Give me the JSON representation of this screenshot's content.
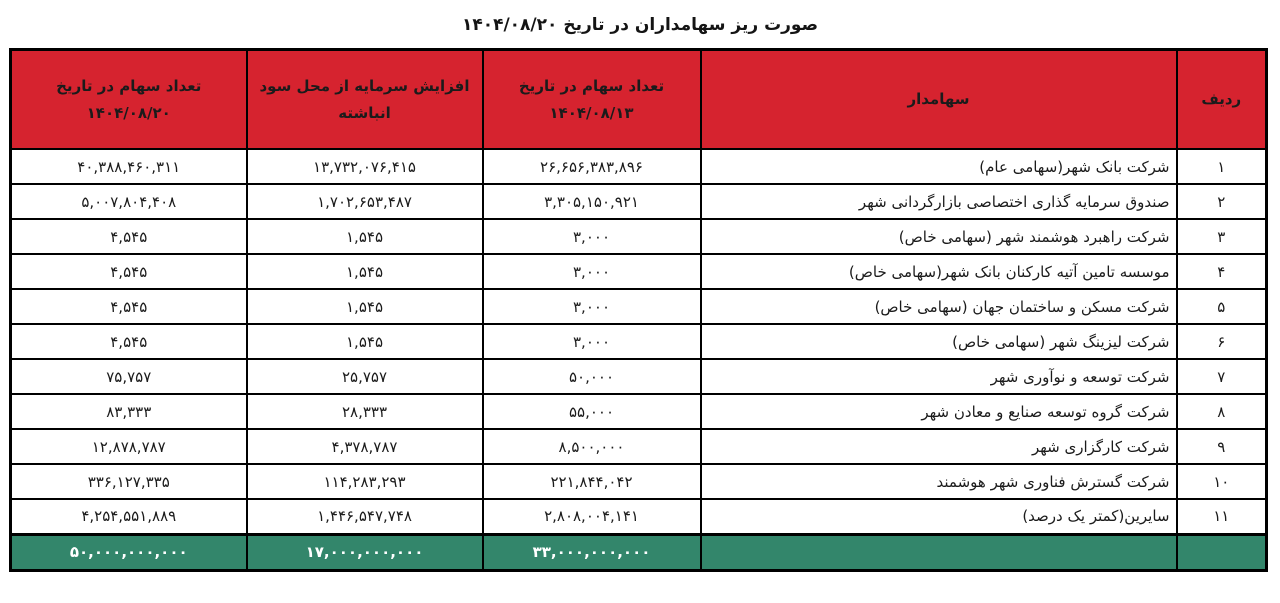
{
  "page": {
    "title": "صورت ریز سهامداران در تاریخ ۱۴۰۴/۰۸/۲۰"
  },
  "colors": {
    "header_bg": "#D6232F",
    "total_bg": "#33866B",
    "border": "#000000",
    "header_text": "#ffffff",
    "body_text": "#1b1b1b"
  },
  "table": {
    "headers": {
      "row_no": "ردیف",
      "shareholder": "سهامدار",
      "shares_before": [
        "تعداد سهام در تاریخ",
        "۱۴۰۴/۰۸/۱۳"
      ],
      "increase": [
        "افزایش سرمایه از محل سود",
        "انباشته"
      ],
      "shares_after": [
        "تعداد سهام در تاریخ",
        "۱۴۰۴/۰۸/۲۰"
      ]
    },
    "rows": [
      {
        "no": "۱",
        "name": "شرکت بانک شهر(سهامی عام)",
        "shares_before": "۲۶,۶۵۶,۳۸۳,۸۹۶",
        "increase": "۱۳,۷۳۲,۰۷۶,۴۱۵",
        "shares_after": "۴۰,۳۸۸,۴۶۰,۳۱۱"
      },
      {
        "no": "۲",
        "name": "صندوق سرمایه گذاری  اختصاصی بازارگردانی شهر",
        "shares_before": "۳,۳۰۵,۱۵۰,۹۲۱",
        "increase": "۱,۷۰۲,۶۵۳,۴۸۷",
        "shares_after": "۵,۰۰۷,۸۰۴,۴۰۸"
      },
      {
        "no": "۳",
        "name": "شرکت راهبرد هوشمند شهر (سهامی خاص)",
        "shares_before": "۳,۰۰۰",
        "increase": "۱,۵۴۵",
        "shares_after": "۴,۵۴۵"
      },
      {
        "no": "۴",
        "name": "موسسه تامین آتیه کارکنان بانک شهر(سهامی خاص)",
        "shares_before": "۳,۰۰۰",
        "increase": "۱,۵۴۵",
        "shares_after": "۴,۵۴۵"
      },
      {
        "no": "۵",
        "name": "شرکت مسکن و ساختمان جهان (سهامی خاص)",
        "shares_before": "۳,۰۰۰",
        "increase": "۱,۵۴۵",
        "shares_after": "۴,۵۴۵"
      },
      {
        "no": "۶",
        "name": "شرکت لیزینگ شهر (سهامی خاص)",
        "shares_before": "۳,۰۰۰",
        "increase": "۱,۵۴۵",
        "shares_after": "۴,۵۴۵"
      },
      {
        "no": "۷",
        "name": "شرکت توسعه و نوآوری شهر",
        "shares_before": "۵۰,۰۰۰",
        "increase": "۲۵,۷۵۷",
        "shares_after": "۷۵,۷۵۷"
      },
      {
        "no": "۸",
        "name": "شرکت گروه توسعه صنایع و معادن  شهر",
        "shares_before": "۵۵,۰۰۰",
        "increase": "۲۸,۳۳۳",
        "shares_after": "۸۳,۳۳۳"
      },
      {
        "no": "۹",
        "name": "شرکت کارگزاری شهر",
        "shares_before": "۸,۵۰۰,۰۰۰",
        "increase": "۴,۳۷۸,۷۸۷",
        "shares_after": "۱۲,۸۷۸,۷۸۷"
      },
      {
        "no": "۱۰",
        "name": "شرکت گسترش فناوری شهر هوشمند",
        "shares_before": "۲۲۱,۸۴۴,۰۴۲",
        "increase": "۱۱۴,۲۸۳,۲۹۳",
        "shares_after": "۳۳۶,۱۲۷,۳۳۵"
      },
      {
        "no": "۱۱",
        "name": "سایرین(کمتر یک درصد)",
        "shares_before": "۲,۸۰۸,۰۰۴,۱۴۱",
        "increase": "۱,۴۴۶,۵۴۷,۷۴۸",
        "shares_after": "۴,۲۵۴,۵۵۱,۸۸۹"
      }
    ],
    "total": {
      "no": "",
      "name": "",
      "shares_before": "۳۳,۰۰۰,۰۰۰,۰۰۰",
      "increase": "۱۷,۰۰۰,۰۰۰,۰۰۰",
      "shares_after": "۵۰,۰۰۰,۰۰۰,۰۰۰"
    }
  }
}
